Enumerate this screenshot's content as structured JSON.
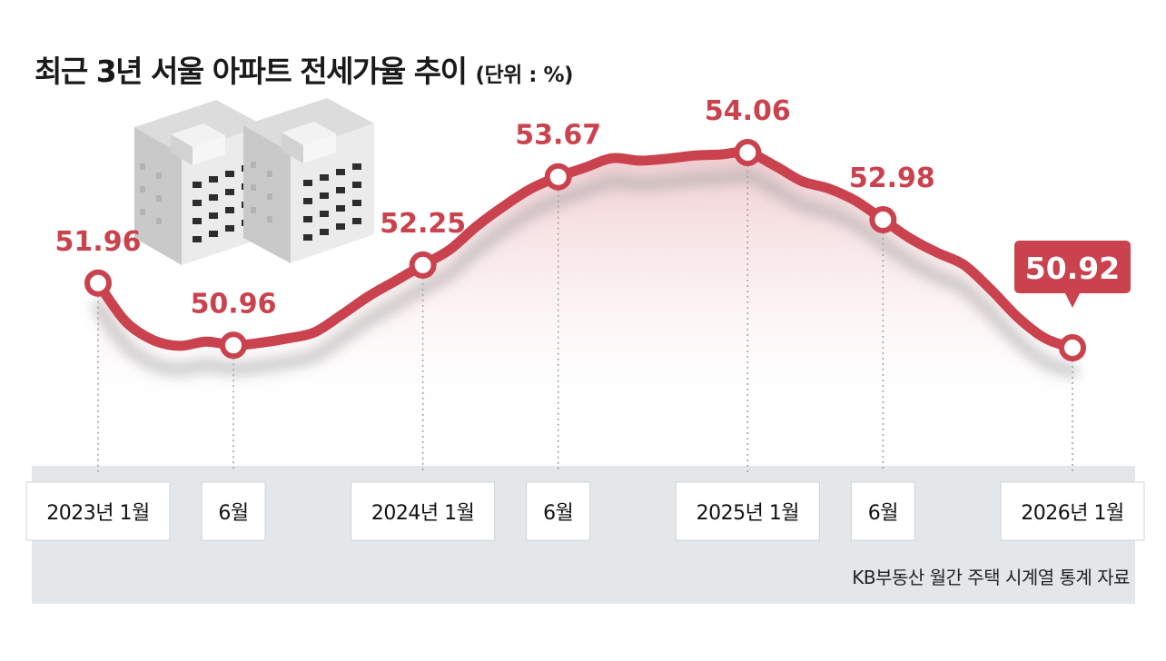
{
  "title": "최근 3년 서울 아파트 전세가율 추이",
  "unit": "(단위 : %)",
  "source": "KB부동산 월간 주택 시계열 통계 자료",
  "chart_data": {
    "type": "line",
    "title": "최근 3년 서울 아파트 전세가율 추이",
    "unit": "%",
    "line_color": "#c9424d",
    "callout_color": "#c9424d",
    "ticks": [
      {
        "label": "2023년 1월",
        "month_index": 0
      },
      {
        "label": "6월",
        "month_index": 5
      },
      {
        "label": "2024년 1월",
        "month_index": 12
      },
      {
        "label": "6월",
        "month_index": 17
      },
      {
        "label": "2025년 1월",
        "month_index": 24
      },
      {
        "label": "6월",
        "month_index": 29
      },
      {
        "label": "2026년 1월",
        "month_index": 36
      }
    ],
    "labeled_points": [
      {
        "label": "51.96",
        "month_index": 0,
        "value": 51.96
      },
      {
        "label": "50.96",
        "month_index": 5,
        "value": 50.96
      },
      {
        "label": "52.25",
        "month_index": 12,
        "value": 52.25
      },
      {
        "label": "53.67",
        "month_index": 17,
        "value": 53.67
      },
      {
        "label": "54.06",
        "month_index": 24,
        "value": 54.06
      },
      {
        "label": "52.98",
        "month_index": 29,
        "value": 52.98
      },
      {
        "label": "50.92",
        "month_index": 36,
        "value": 50.92,
        "highlight": true
      }
    ],
    "series": [
      {
        "x": [
          "2023-01",
          "2023-02",
          "2023-03",
          "2023-04",
          "2023-05",
          "2023-06",
          "2023-07",
          "2023-08",
          "2023-09",
          "2023-10",
          "2023-11",
          "2023-12",
          "2024-01",
          "2024-02",
          "2024-03",
          "2024-04",
          "2024-05",
          "2024-06",
          "2024-07",
          "2024-08",
          "2024-09",
          "2024-10",
          "2024-11",
          "2024-12",
          "2025-01",
          "2025-02",
          "2025-03",
          "2025-04",
          "2025-05",
          "2025-06",
          "2025-07",
          "2025-08",
          "2025-09",
          "2025-10",
          "2025-11",
          "2025-12",
          "2026-01"
        ],
        "values": [
          51.96,
          51.35,
          51.05,
          50.95,
          51.02,
          50.96,
          51.0,
          51.07,
          51.17,
          51.45,
          51.75,
          52.0,
          52.25,
          52.5,
          52.88,
          53.2,
          53.48,
          53.67,
          53.82,
          53.97,
          53.93,
          53.96,
          54.01,
          54.03,
          54.06,
          53.85,
          53.6,
          53.48,
          53.28,
          52.98,
          52.68,
          52.45,
          52.25,
          51.85,
          51.4,
          51.07,
          50.92
        ]
      }
    ]
  }
}
